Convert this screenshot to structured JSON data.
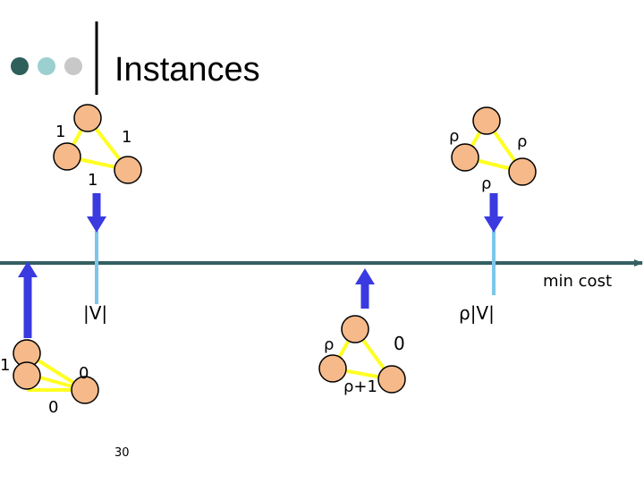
{
  "slide": {
    "title": "Instances",
    "page_number": "30",
    "axis_label": "min cost",
    "bullet_colors": [
      "#2f5f5a",
      "#9ccfd0",
      "#c8c8c8"
    ]
  },
  "colors": {
    "node_fill": "#f5b98a",
    "edge": "#ffff22",
    "axis": "#335f62",
    "arrow_blue": "#3a3ae0",
    "stem_light": "#7dc6ea"
  },
  "instances": {
    "a": {
      "edge_left": "1",
      "edge_right": "1",
      "edge_bottom": "1",
      "value": "|V|"
    },
    "b": {
      "edge_left": "ρ",
      "edge_right": "ρ",
      "edge_bottom": "ρ",
      "value": "ρ|V|"
    },
    "c": {
      "edge_left": "1",
      "edge_right": "0",
      "edge_bottom": "0"
    },
    "d": {
      "edge_left": "ρ",
      "edge_right": "0",
      "edge_bottom": "ρ+1"
    }
  }
}
